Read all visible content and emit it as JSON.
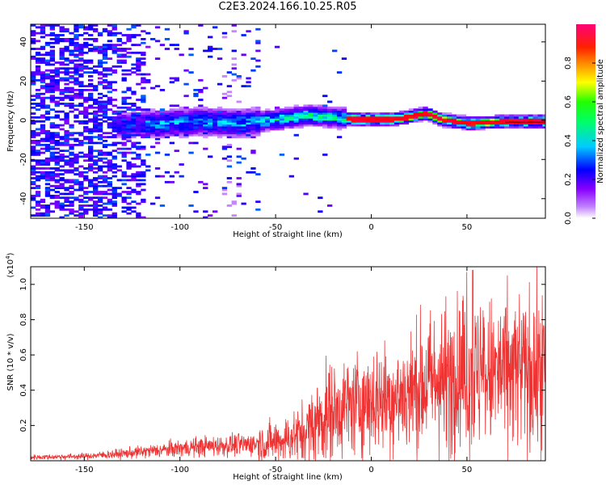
{
  "title": "C2E3.2024.166.10.25.R05",
  "chart_data": [
    {
      "type": "heatmap",
      "xlabel": "Height of straight line (km)",
      "ylabel": "Frequency (Hz)",
      "xlim": [
        -178,
        91
      ],
      "ylim": [
        -50,
        49
      ],
      "xticks": [
        -150,
        -100,
        -50,
        0,
        50
      ],
      "yticks": [
        -40,
        -20,
        0,
        20,
        40
      ],
      "colorbar": {
        "label": "Normalized spectral amplitude",
        "range": [
          0,
          1
        ],
        "ticks": [
          "0.0",
          "0.2",
          "0.4",
          "0.6",
          "0.8"
        ],
        "colormap": [
          "#ffffff",
          "#8800ff",
          "#0000ff",
          "#00ffff",
          "#00ff00",
          "#ffff00",
          "#ff8800",
          "#ff0000",
          "#ff0088"
        ]
      },
      "ridge_center_hz": [
        {
          "x": -130,
          "y": -3
        },
        {
          "x": -110,
          "y": -2
        },
        {
          "x": -90,
          "y": -1
        },
        {
          "x": -70,
          "y": -2
        },
        {
          "x": -50,
          "y": 0
        },
        {
          "x": -35,
          "y": 2
        },
        {
          "x": -20,
          "y": 1
        },
        {
          "x": -10,
          "y": 0
        },
        {
          "x": 10,
          "y": 0
        },
        {
          "x": 28,
          "y": 3
        },
        {
          "x": 35,
          "y": 0
        },
        {
          "x": 50,
          "y": -2
        },
        {
          "x": 70,
          "y": -1
        },
        {
          "x": 91,
          "y": -1
        }
      ]
    },
    {
      "type": "line",
      "xlabel": "Height of straight line (km)",
      "ylabel": "SNR (10 * v/v)",
      "y_multiplier": "(x10",
      "y_multiplier_exp": "4",
      "y_multiplier_close": ")",
      "xlim": [
        -178,
        91
      ],
      "ylim": [
        0,
        1.1
      ],
      "xticks": [
        -150,
        -100,
        -50,
        0,
        50
      ],
      "yticks": [
        "0.2",
        "0.4",
        "0.6",
        "0.8",
        "1.0"
      ],
      "ytick_values": [
        0.2,
        0.4,
        0.6,
        0.8,
        1.0
      ],
      "color": "#ee3333",
      "series_envelope": [
        {
          "x": -178,
          "y": 0.02
        },
        {
          "x": -150,
          "y": 0.025
        },
        {
          "x": -130,
          "y": 0.04
        },
        {
          "x": -110,
          "y": 0.06
        },
        {
          "x": -90,
          "y": 0.08
        },
        {
          "x": -70,
          "y": 0.09
        },
        {
          "x": -55,
          "y": 0.1
        },
        {
          "x": -45,
          "y": 0.12
        },
        {
          "x": -35,
          "y": 0.16
        },
        {
          "x": -25,
          "y": 0.25
        },
        {
          "x": -15,
          "y": 0.3
        },
        {
          "x": -5,
          "y": 0.33
        },
        {
          "x": 5,
          "y": 0.35
        },
        {
          "x": 15,
          "y": 0.36
        },
        {
          "x": 25,
          "y": 0.42
        },
        {
          "x": 35,
          "y": 0.46
        },
        {
          "x": 45,
          "y": 0.48
        },
        {
          "x": 52,
          "y": 0.48
        },
        {
          "x": 60,
          "y": 0.48
        },
        {
          "x": 70,
          "y": 0.5
        },
        {
          "x": 80,
          "y": 0.5
        },
        {
          "x": 91,
          "y": 0.5
        }
      ],
      "peak": {
        "x": 53,
        "y": 1.08
      }
    }
  ]
}
